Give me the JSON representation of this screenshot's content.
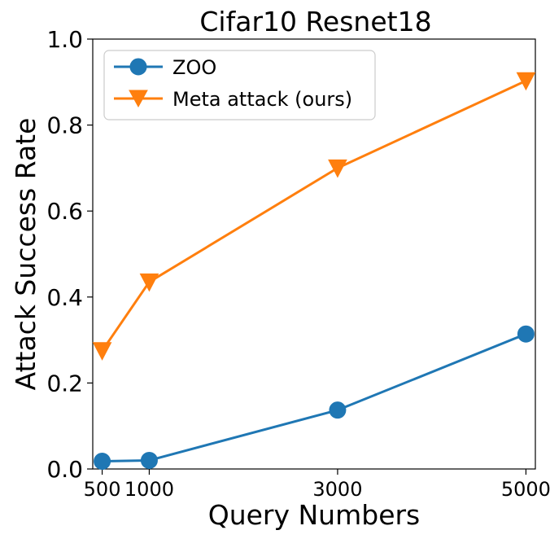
{
  "chart_data": {
    "type": "line",
    "title": "Cifar10 Resnet18",
    "xlabel": "Query Numbers",
    "ylabel": "Attack Success Rate",
    "x": [
      500,
      1000,
      3000,
      5000
    ],
    "xticks": [
      "500",
      "1000",
      "3000",
      "5000"
    ],
    "ylim": [
      0.0,
      1.0
    ],
    "yticks": [
      "0.0",
      "0.2",
      "0.4",
      "0.6",
      "0.8",
      "1.0"
    ],
    "grid": false,
    "legend_position": "top-left",
    "series": [
      {
        "name": "ZOO",
        "color": "#1f77b4",
        "marker": "circle",
        "values": [
          0.018,
          0.02,
          0.137,
          0.314
        ]
      },
      {
        "name": "Meta attack (ours)",
        "color": "#ff7f0e",
        "marker": "triangle-down",
        "values": [
          0.275,
          0.435,
          0.7,
          0.903
        ]
      }
    ]
  }
}
